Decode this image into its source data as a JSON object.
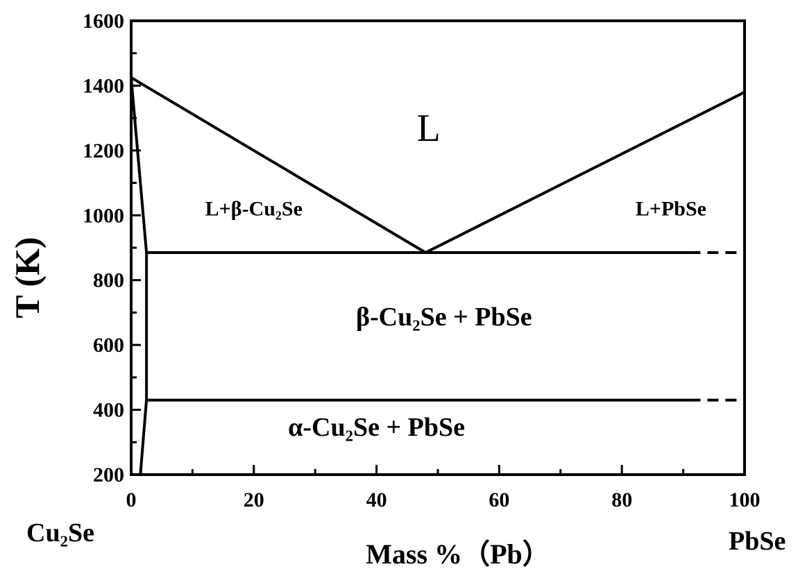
{
  "chart_data": {
    "type": "line",
    "title": "",
    "xlabel": "Mass %（Pb）",
    "ylabel": "T (K)",
    "xlim": [
      0,
      100
    ],
    "ylim": [
      200,
      1600
    ],
    "x_ticks": [
      "0",
      "20",
      "40",
      "60",
      "80",
      "100"
    ],
    "y_ticks": [
      "200",
      "400",
      "600",
      "800",
      "1000",
      "1200",
      "1400",
      "1600"
    ],
    "x_tick_values": [
      0,
      20,
      40,
      60,
      80,
      100
    ],
    "y_tick_values": [
      200,
      400,
      600,
      800,
      1000,
      1200,
      1400,
      1600
    ],
    "endpoint_left": "Cu₂Se",
    "endpoint_right": "PbSe",
    "grid": false,
    "lines": [
      {
        "kind": "solid",
        "points": [
          [
            0,
            1425
          ],
          [
            48,
            885
          ]
        ]
      },
      {
        "kind": "solid",
        "points": [
          [
            48,
            885
          ],
          [
            100,
            1380
          ]
        ]
      },
      {
        "kind": "solid",
        "points": [
          [
            0,
            1425
          ],
          [
            2.5,
            885
          ]
        ]
      },
      {
        "kind": "solid",
        "points": [
          [
            2.5,
            885
          ],
          [
            2.5,
            430
          ]
        ]
      },
      {
        "kind": "solid",
        "points": [
          [
            2.5,
            430
          ],
          [
            1.5,
            200
          ]
        ]
      },
      {
        "kind": "solid",
        "points": [
          [
            2.5,
            885
          ],
          [
            91,
            885
          ]
        ]
      },
      {
        "kind": "dashed",
        "points": [
          [
            91,
            885
          ],
          [
            100,
            885
          ]
        ]
      },
      {
        "kind": "solid",
        "points": [
          [
            2.5,
            430
          ],
          [
            91,
            430
          ]
        ]
      },
      {
        "kind": "dashed",
        "points": [
          [
            91,
            430
          ],
          [
            100,
            430
          ]
        ]
      }
    ],
    "region_labels": [
      {
        "text": "L",
        "x": 48.5,
        "y": 1230,
        "size": "large"
      },
      {
        "text": "L+β-Cu₂Se",
        "x": 20,
        "y": 1000,
        "size": "small"
      },
      {
        "text": "L+PbSe",
        "x": 88,
        "y": 1000,
        "size": "small"
      },
      {
        "text": "β-Cu₂Se + PbSe",
        "x": 51,
        "y": 660,
        "size": "medium"
      },
      {
        "text": "α-Cu₂Se + PbSe",
        "x": 40,
        "y": 320,
        "size": "medium"
      }
    ]
  }
}
